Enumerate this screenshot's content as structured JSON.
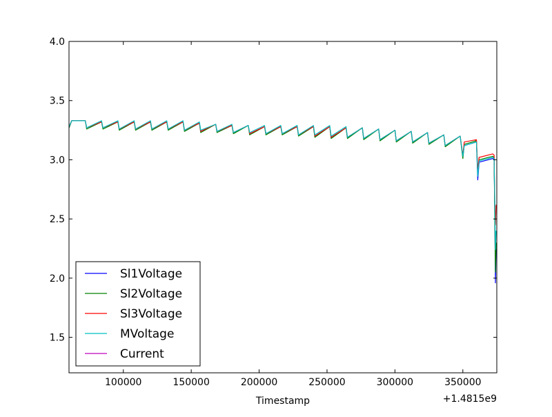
{
  "chart_data": {
    "type": "line",
    "title": "",
    "xlabel": "Timestamp",
    "ylabel": "",
    "x_offset_label": "+1.4815e9",
    "xlim": [
      60000,
      375000
    ],
    "ylim": [
      1.2,
      4.0
    ],
    "x_ticks": [
      100000,
      150000,
      200000,
      250000,
      300000,
      350000
    ],
    "x_tick_labels": [
      "100000",
      "150000",
      "200000",
      "250000",
      "300000",
      "350000"
    ],
    "y_ticks": [
      1.5,
      2.0,
      2.5,
      3.0,
      3.5,
      4.0
    ],
    "y_tick_labels": [
      "1.5",
      "2.0",
      "2.5",
      "3.0",
      "3.5",
      "4.0"
    ],
    "grid": false,
    "legend_position": "lower-left",
    "series": [
      {
        "name": "Sl1Voltage",
        "color": "#0000ff",
        "x": [
          60000,
          62000,
          72000,
          73000,
          84000,
          85000,
          96000,
          97000,
          108000,
          109000,
          120000,
          121000,
          132000,
          133000,
          144000,
          145000,
          156000,
          157000,
          168000,
          169000,
          180000,
          181000,
          192000,
          193000,
          204000,
          205000,
          216000,
          217000,
          228000,
          229000,
          240000,
          241000,
          252000,
          253000,
          264000,
          265000,
          276000,
          277000,
          288000,
          289000,
          300000,
          301000,
          312000,
          313000,
          324000,
          325000,
          336000,
          337000,
          348000,
          350000,
          351000,
          360000,
          361000,
          362000,
          372000,
          373000,
          373500,
          374000,
          374500
        ],
        "y": [
          3.27,
          3.33,
          3.33,
          3.27,
          3.32,
          3.27,
          3.32,
          3.26,
          3.32,
          3.26,
          3.32,
          3.26,
          3.32,
          3.26,
          3.32,
          3.25,
          3.31,
          3.24,
          3.3,
          3.24,
          3.29,
          3.23,
          3.29,
          3.22,
          3.28,
          3.22,
          3.28,
          3.22,
          3.28,
          3.21,
          3.28,
          3.2,
          3.28,
          3.19,
          3.27,
          3.19,
          3.27,
          3.18,
          3.26,
          3.17,
          3.25,
          3.16,
          3.24,
          3.15,
          3.23,
          3.14,
          3.21,
          3.12,
          3.2,
          3.02,
          3.12,
          3.15,
          2.83,
          2.98,
          3.01,
          3.0,
          2.6,
          1.96,
          2.25
        ]
      },
      {
        "name": "Sl2Voltage",
        "color": "#008000",
        "x": [
          60000,
          62000,
          72000,
          73000,
          84000,
          85000,
          96000,
          97000,
          108000,
          109000,
          120000,
          121000,
          132000,
          133000,
          144000,
          145000,
          156000,
          157000,
          168000,
          169000,
          180000,
          181000,
          192000,
          193000,
          204000,
          205000,
          216000,
          217000,
          228000,
          229000,
          240000,
          241000,
          252000,
          253000,
          264000,
          265000,
          276000,
          277000,
          288000,
          289000,
          300000,
          301000,
          312000,
          313000,
          324000,
          325000,
          336000,
          337000,
          348000,
          350000,
          351000,
          360000,
          361000,
          362000,
          372000,
          373000,
          373500,
          374000,
          374500
        ],
        "y": [
          3.27,
          3.33,
          3.33,
          3.26,
          3.32,
          3.26,
          3.32,
          3.25,
          3.32,
          3.25,
          3.32,
          3.25,
          3.32,
          3.25,
          3.32,
          3.24,
          3.31,
          3.23,
          3.3,
          3.23,
          3.29,
          3.22,
          3.29,
          3.21,
          3.28,
          3.21,
          3.28,
          3.21,
          3.28,
          3.2,
          3.28,
          3.19,
          3.28,
          3.18,
          3.27,
          3.18,
          3.27,
          3.17,
          3.26,
          3.16,
          3.25,
          3.15,
          3.24,
          3.14,
          3.23,
          3.13,
          3.21,
          3.11,
          3.2,
          3.01,
          3.13,
          3.16,
          2.88,
          3.0,
          3.03,
          3.02,
          2.55,
          2.05,
          2.3
        ]
      },
      {
        "name": "Sl3Voltage",
        "color": "#ff0000",
        "x": [
          60000,
          62000,
          72000,
          73000,
          84000,
          85000,
          96000,
          97000,
          108000,
          109000,
          120000,
          121000,
          132000,
          133000,
          144000,
          145000,
          156000,
          157000,
          168000,
          169000,
          180000,
          181000,
          192000,
          193000,
          204000,
          205000,
          216000,
          217000,
          228000,
          229000,
          240000,
          241000,
          252000,
          253000,
          264000,
          265000,
          276000,
          277000,
          288000,
          289000,
          300000,
          301000,
          312000,
          313000,
          324000,
          325000,
          336000,
          337000,
          348000,
          350000,
          351000,
          360000,
          361000,
          362000,
          372000,
          373000,
          373500,
          374000,
          374500
        ],
        "y": [
          3.28,
          3.33,
          3.33,
          3.27,
          3.32,
          3.27,
          3.32,
          3.26,
          3.32,
          3.26,
          3.32,
          3.26,
          3.32,
          3.26,
          3.32,
          3.25,
          3.31,
          3.24,
          3.3,
          3.24,
          3.29,
          3.23,
          3.29,
          3.22,
          3.28,
          3.22,
          3.28,
          3.22,
          3.28,
          3.21,
          3.28,
          3.2,
          3.28,
          3.19,
          3.27,
          3.19,
          3.27,
          3.18,
          3.26,
          3.17,
          3.25,
          3.16,
          3.24,
          3.15,
          3.23,
          3.14,
          3.21,
          3.12,
          3.2,
          3.04,
          3.15,
          3.17,
          2.92,
          3.02,
          3.05,
          3.04,
          2.65,
          2.45,
          2.62
        ]
      },
      {
        "name": "MVoltage",
        "color": "#00bfbf",
        "x": [
          60000,
          62000,
          72000,
          73000,
          84000,
          85000,
          96000,
          97000,
          108000,
          109000,
          120000,
          121000,
          132000,
          133000,
          144000,
          145000,
          156000,
          157000,
          168000,
          169000,
          180000,
          181000,
          192000,
          193000,
          204000,
          205000,
          216000,
          217000,
          228000,
          229000,
          240000,
          241000,
          252000,
          253000,
          264000,
          265000,
          276000,
          277000,
          288000,
          289000,
          300000,
          301000,
          312000,
          313000,
          324000,
          325000,
          336000,
          337000,
          348000,
          350000,
          351000,
          360000,
          361000,
          362000,
          372000,
          373000,
          373500,
          374000,
          374500
        ],
        "y": [
          3.28,
          3.33,
          3.33,
          3.27,
          3.33,
          3.27,
          3.33,
          3.26,
          3.33,
          3.26,
          3.33,
          3.26,
          3.33,
          3.26,
          3.33,
          3.25,
          3.32,
          3.25,
          3.3,
          3.24,
          3.3,
          3.23,
          3.29,
          3.23,
          3.29,
          3.22,
          3.29,
          3.22,
          3.29,
          3.21,
          3.29,
          3.21,
          3.29,
          3.2,
          3.28,
          3.19,
          3.27,
          3.18,
          3.26,
          3.17,
          3.25,
          3.16,
          3.24,
          3.15,
          3.23,
          3.14,
          3.21,
          3.12,
          3.2,
          3.03,
          3.12,
          3.15,
          2.86,
          2.99,
          3.02,
          3.01,
          2.7,
          2.24,
          2.4
        ]
      },
      {
        "name": "Current",
        "color": "#bf00bf",
        "x": [],
        "y": []
      }
    ]
  }
}
